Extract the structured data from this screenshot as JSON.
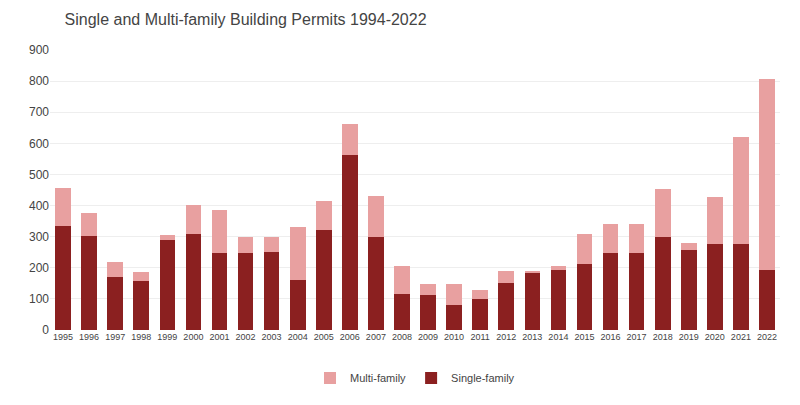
{
  "chart_data": {
    "type": "bar",
    "title": "Single and Multi-family Building Permits 1994-2022",
    "categories": [
      1995,
      1996,
      1997,
      1998,
      1999,
      2000,
      2001,
      2002,
      2003,
      2004,
      2005,
      2006,
      2007,
      2008,
      2009,
      2010,
      2011,
      2012,
      2013,
      2014,
      2015,
      2016,
      2017,
      2018,
      2019,
      2020,
      2021,
      2022
    ],
    "series": [
      {
        "name": "Single-family",
        "color": "#8B2020",
        "values": [
          335,
          302,
          170,
          158,
          290,
          307,
          248,
          248,
          250,
          160,
          323,
          562,
          298,
          115,
          113,
          80,
          100,
          150,
          182,
          193,
          213,
          248,
          248,
          300,
          258,
          278,
          278,
          193
        ]
      },
      {
        "name": "Multi-family",
        "color": "#E8A0A0",
        "values": [
          122,
          75,
          48,
          27,
          15,
          95,
          138,
          52,
          48,
          170,
          92,
          100,
          132,
          90,
          35,
          68,
          28,
          40,
          8,
          12,
          95,
          92,
          92,
          152,
          22,
          148,
          342,
          615
        ]
      }
    ],
    "stacked": true,
    "ylim": [
      0,
      900
    ],
    "yticks": [
      0,
      100,
      200,
      300,
      400,
      500,
      600,
      700,
      800,
      900
    ],
    "grid": true,
    "legend": "bottom"
  }
}
